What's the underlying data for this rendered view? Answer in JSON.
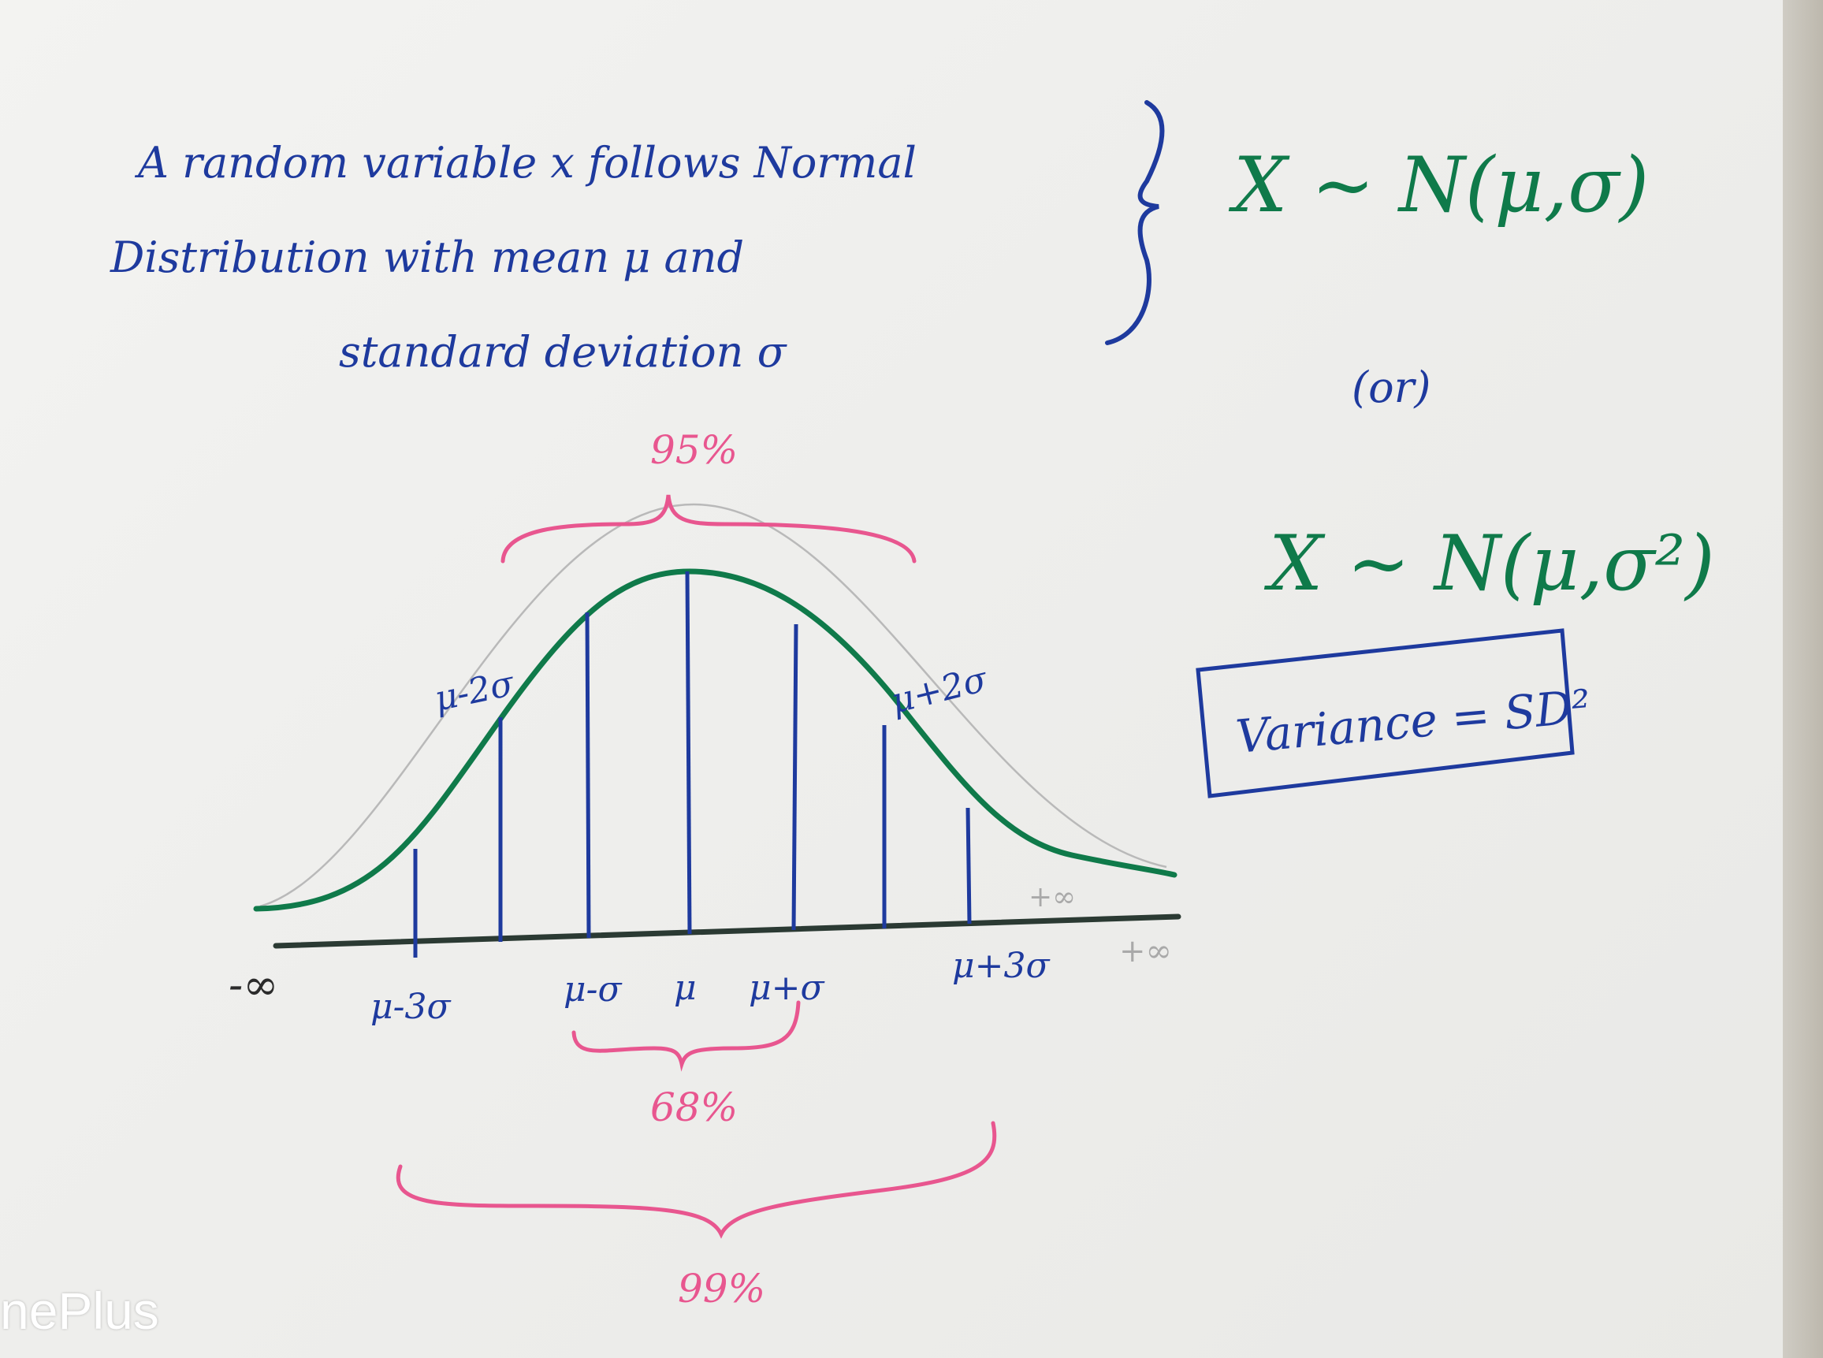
{
  "definition": {
    "line1": "A random variable x follows Normal",
    "line2": "Distribution with mean μ and",
    "line3": "standard deviation σ"
  },
  "notation": {
    "form1": "X ~ N(μ,σ)",
    "or_text": "(or)",
    "form2": "X ~ N(μ,σ²)"
  },
  "variance_box": "Variance = SD²",
  "curve_labels": {
    "upper_left": "μ-2σ",
    "upper_right": "μ+2σ",
    "plus_inf_upper": "+∞"
  },
  "axis_labels": {
    "neg_inf": "-∞",
    "mu_minus_3s": "μ-3σ",
    "mu_minus_s": "μ-σ",
    "mu": "μ",
    "mu_plus_s": "μ+σ",
    "mu_plus_3s": "μ+3σ",
    "pos_inf": "+∞"
  },
  "percentages": {
    "p95": "95%",
    "p68": "68%",
    "p99": "99%"
  },
  "watermark": "nePlus",
  "colors": {
    "ink_blue": "#1e3a9e",
    "ink_green": "#0f7a4a",
    "ink_pink": "#e8568f"
  }
}
